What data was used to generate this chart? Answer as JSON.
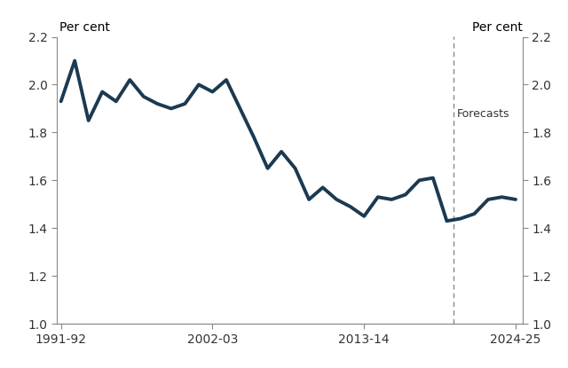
{
  "title_left": "Per cent",
  "title_right": "Per cent",
  "forecast_label": "Forecasts",
  "line_color": "#1b3a52",
  "line_width": 2.8,
  "background_color": "#ffffff",
  "ylim": [
    1.0,
    2.2
  ],
  "yticks": [
    1.0,
    1.2,
    1.4,
    1.6,
    1.8,
    2.0,
    2.2
  ],
  "forecast_x": 2019.5,
  "years": [
    1991,
    1992,
    1993,
    1994,
    1995,
    1996,
    1997,
    1998,
    1999,
    2000,
    2001,
    2002,
    2003,
    2004,
    2005,
    2006,
    2007,
    2008,
    2009,
    2010,
    2011,
    2012,
    2013,
    2014,
    2015,
    2016,
    2017,
    2018,
    2019,
    2020,
    2021,
    2022,
    2023,
    2024
  ],
  "values": [
    1.93,
    2.1,
    1.85,
    1.97,
    1.93,
    2.02,
    1.95,
    1.92,
    1.9,
    1.92,
    2.0,
    1.97,
    2.02,
    1.9,
    1.78,
    1.65,
    1.72,
    1.65,
    1.52,
    1.57,
    1.52,
    1.49,
    1.45,
    1.53,
    1.52,
    1.54,
    1.6,
    1.61,
    1.43,
    1.44,
    1.46,
    1.52,
    1.53,
    1.52
  ],
  "xtick_positions": [
    1991,
    2002,
    2013,
    2024
  ],
  "xtick_labels": [
    "1991-92",
    "2002-03",
    "2013-14",
    "2024-25"
  ],
  "spine_color": "#888888",
  "tick_color": "#888888",
  "dashed_line_color": "#888888",
  "label_color": "#333333",
  "forecasts_y": 1.9
}
